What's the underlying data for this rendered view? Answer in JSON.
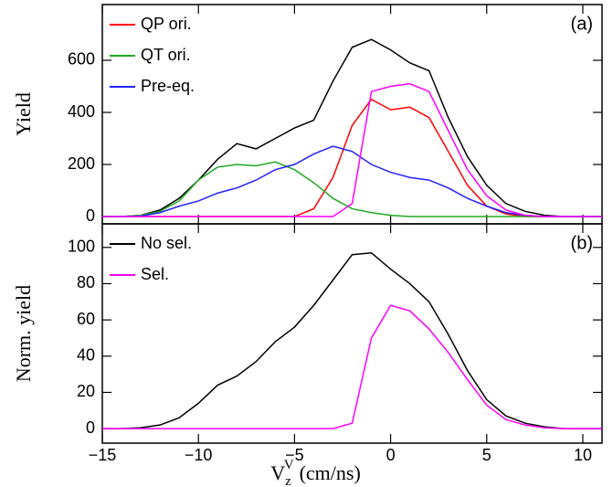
{
  "chart_data": [
    {
      "type": "line",
      "ylabel": "Yield",
      "annotation": "(a)",
      "legend": "upper left",
      "x": [
        -15,
        -14,
        -13,
        -12,
        -11,
        -10,
        -9,
        -8,
        -7,
        -6,
        -5,
        -4,
        -3,
        -2,
        -1,
        0,
        1,
        2,
        3,
        4,
        5,
        6,
        7,
        8,
        9,
        10,
        11
      ],
      "xlim": [
        -15,
        11
      ],
      "ylim": [
        -28,
        814
      ],
      "yticks": [
        0,
        200,
        400,
        600
      ],
      "series": [
        {
          "name": "",
          "color": "#000000",
          "values": [
            0,
            0,
            5,
            25,
            70,
            140,
            220,
            280,
            260,
            300,
            340,
            370,
            520,
            650,
            680,
            640,
            590,
            560,
            380,
            230,
            120,
            50,
            20,
            5,
            0,
            0,
            0
          ]
        },
        {
          "name": "QP ori.",
          "color": "#ff0000",
          "values": [
            0,
            0,
            0,
            0,
            0,
            0,
            0,
            0,
            0,
            0,
            0,
            30,
            150,
            350,
            450,
            410,
            420,
            380,
            250,
            120,
            40,
            10,
            0,
            0,
            0,
            0,
            0
          ]
        },
        {
          "name": "QT ori.",
          "color": "#22aa22",
          "values": [
            0,
            0,
            5,
            20,
            60,
            140,
            190,
            200,
            195,
            210,
            180,
            130,
            70,
            30,
            15,
            5,
            0,
            0,
            0,
            0,
            0,
            0,
            0,
            0,
            0,
            0,
            0
          ]
        },
        {
          "name": "Pre-eq.",
          "color": "#2222ff",
          "values": [
            0,
            0,
            2,
            15,
            40,
            60,
            90,
            110,
            140,
            180,
            200,
            240,
            270,
            250,
            200,
            170,
            150,
            140,
            110,
            70,
            40,
            15,
            5,
            0,
            0,
            0,
            0
          ]
        },
        {
          "name": "",
          "color": "#ff00ff",
          "values": [
            0,
            0,
            0,
            0,
            0,
            0,
            0,
            0,
            0,
            0,
            0,
            0,
            0,
            50,
            480,
            500,
            510,
            480,
            330,
            180,
            80,
            25,
            5,
            0,
            0,
            0,
            0
          ]
        }
      ]
    },
    {
      "type": "line",
      "ylabel": "Norm. yield",
      "annotation": "(b)",
      "legend": "upper left",
      "xlabel": {
        "base": "V",
        "sub": "z",
        "sup": "V",
        "unit": "(cm/ns)"
      },
      "x": [
        -15,
        -14,
        -13,
        -12,
        -11,
        -10,
        -9,
        -8,
        -7,
        -6,
        -5,
        -4,
        -3,
        -2,
        -1,
        0,
        1,
        2,
        3,
        4,
        5,
        6,
        7,
        8,
        9,
        10,
        11
      ],
      "xlim": [
        -15,
        11
      ],
      "xticks": [
        {
          "value": -15,
          "label": "−15"
        },
        {
          "value": -10,
          "label": "−10"
        },
        {
          "value": -5,
          "label": "−5"
        },
        0,
        5,
        10
      ],
      "ylim": [
        -8,
        113
      ],
      "yticks": [
        0,
        20,
        40,
        60,
        80,
        100
      ],
      "series": [
        {
          "name": "No sel.",
          "color": "#000000",
          "values": [
            0,
            0,
            0.5,
            2,
            6,
            14,
            24,
            29,
            37,
            48,
            56,
            68,
            82,
            96,
            97,
            88,
            80,
            70,
            52,
            32,
            16,
            7,
            3,
            1,
            0,
            0,
            0
          ]
        },
        {
          "name": "Sel.",
          "color": "#ff00ff",
          "values": [
            0,
            0,
            0,
            0,
            0,
            0,
            0,
            0,
            0,
            0,
            0,
            0,
            0,
            3,
            50,
            68,
            65,
            55,
            42,
            27,
            13,
            5,
            2,
            0.5,
            0,
            0,
            0
          ]
        }
      ]
    }
  ]
}
